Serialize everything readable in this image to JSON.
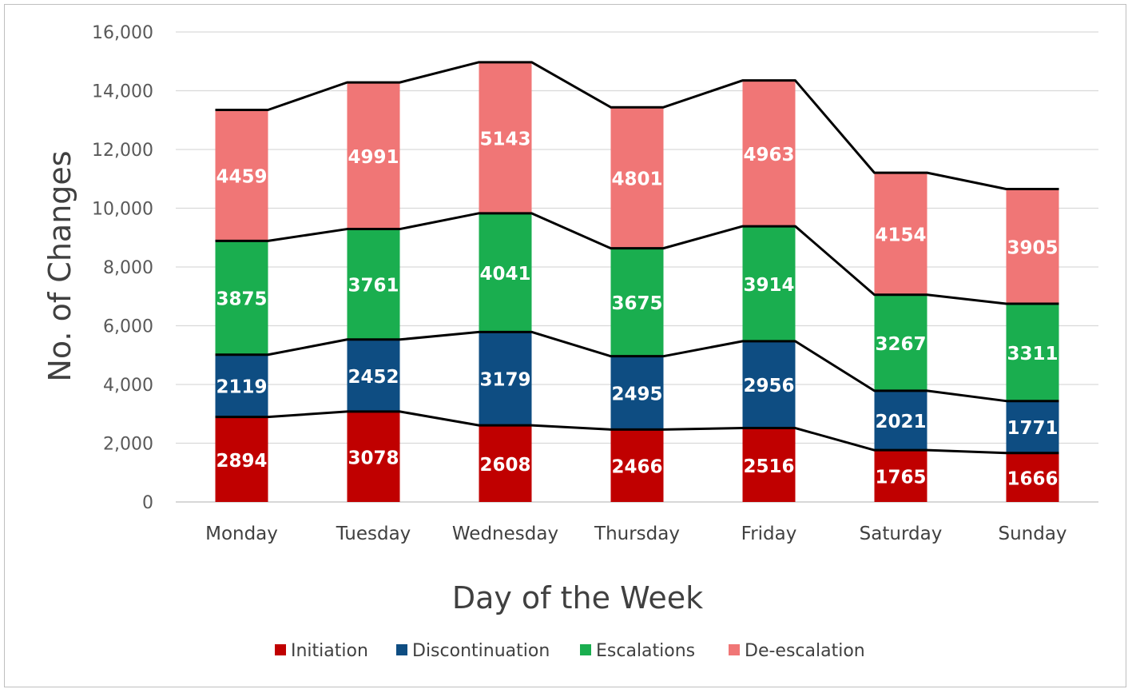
{
  "chart_data": {
    "type": "bar",
    "stacked": true,
    "xlabel": "Day of the Week",
    "ylabel": "No. of Changes",
    "ylim": [
      0,
      16000
    ],
    "yticks": [
      0,
      2000,
      4000,
      6000,
      8000,
      10000,
      12000,
      14000,
      16000
    ],
    "ytick_labels": [
      "0",
      "2,000",
      "4,000",
      "6,000",
      "8,000",
      "10,000",
      "12,000",
      "14,000",
      "16,000"
    ],
    "grid": true,
    "legend_position": "bottom",
    "series_lines": true,
    "categories": [
      "Monday",
      "Tuesday",
      "Wednesday",
      "Thursday",
      "Friday",
      "Saturday",
      "Sunday"
    ],
    "series": [
      {
        "name": "Initiation",
        "color": "#c00000",
        "values": [
          2894,
          3078,
          2608,
          2466,
          2516,
          1765,
          1666
        ]
      },
      {
        "name": "Discontinuation",
        "color": "#0e4d82",
        "values": [
          2119,
          2452,
          3179,
          2495,
          2956,
          2021,
          1771
        ]
      },
      {
        "name": "Escalations",
        "color": "#1aae4f",
        "values": [
          3875,
          3761,
          4041,
          3675,
          3914,
          3267,
          3311
        ]
      },
      {
        "name": "De-escalation",
        "color": "#f07676",
        "values": [
          4459,
          4991,
          5143,
          4801,
          4963,
          4154,
          3905
        ]
      }
    ]
  }
}
